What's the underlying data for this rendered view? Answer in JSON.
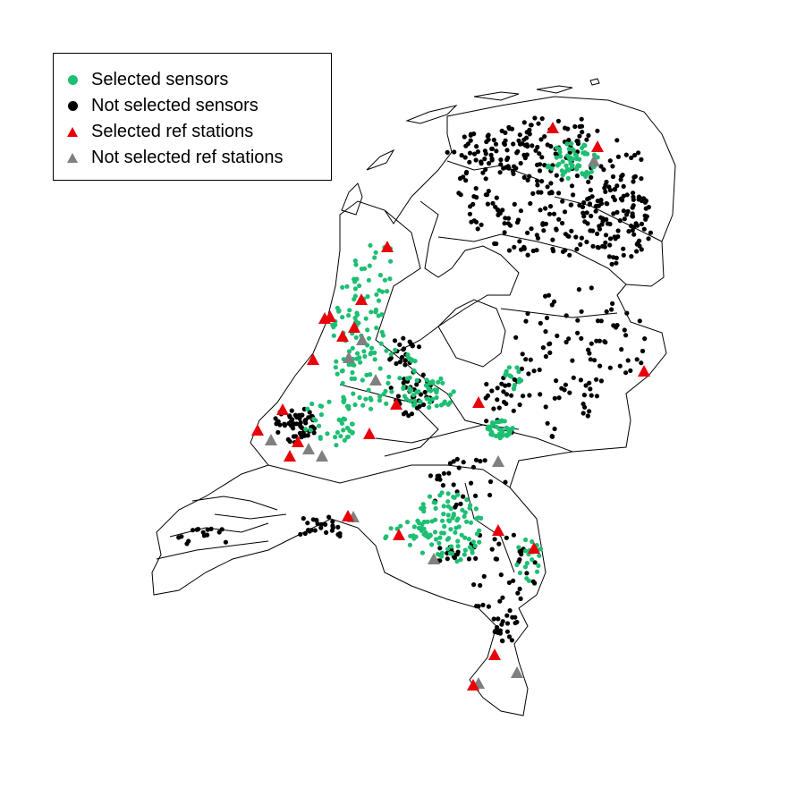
{
  "legend": {
    "items": [
      {
        "label": "Selected sensors",
        "color": "#1dbf73",
        "shape": "circle"
      },
      {
        "label": "Not selected sensors",
        "color": "#000000",
        "shape": "circle"
      },
      {
        "label": "Selected ref stations",
        "color": "#e8000b",
        "shape": "triangle"
      },
      {
        "label": "Not selected ref stations",
        "color": "#808080",
        "shape": "triangle"
      }
    ]
  },
  "colors": {
    "selected_sensor": "#1dbf73",
    "not_selected_sensor": "#000000",
    "selected_ref": "#e8000b",
    "not_selected_ref": "#808080",
    "border": "#000000",
    "background": "#ffffff"
  },
  "map_region": "Netherlands"
}
